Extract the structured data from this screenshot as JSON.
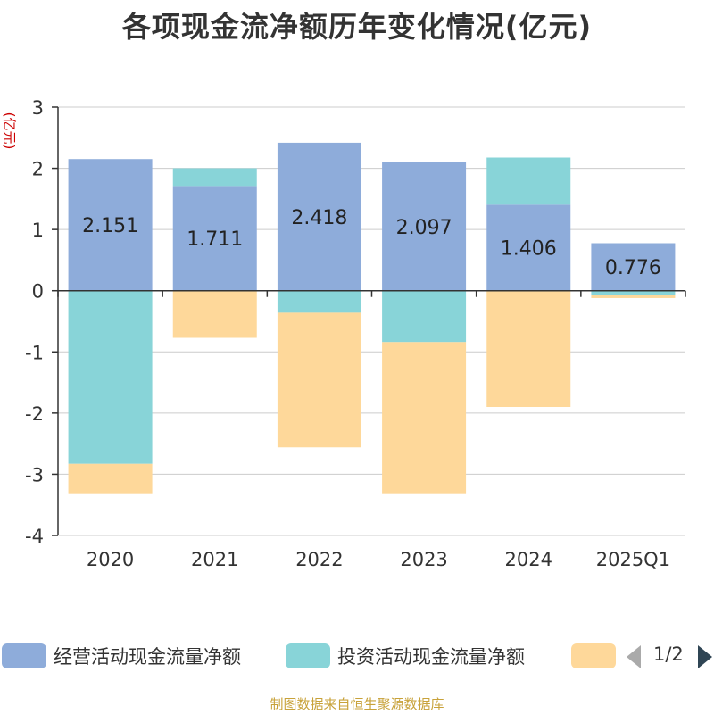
{
  "chart_data": {
    "type": "bar",
    "stacked": true,
    "title": "各项现金流净额历年变化情况(亿元)",
    "ylabel": "(亿元)",
    "ylim": [
      -4,
      3
    ],
    "yticks": [
      3,
      2,
      1,
      0,
      -1,
      -2,
      -3,
      -4
    ],
    "grid": true,
    "categories": [
      "2020",
      "2021",
      "2022",
      "2023",
      "2024",
      "2025Q1"
    ],
    "series": [
      {
        "name": "经营活动现金流量净额",
        "color": "#8eacda",
        "values": [
          2.151,
          1.711,
          2.418,
          2.097,
          1.406,
          0.776
        ],
        "labels": [
          "2.151",
          "1.711",
          "2.418",
          "2.097",
          "1.406",
          "0.776"
        ]
      },
      {
        "name": "投资活动现金流量净额",
        "color": "#88d4d8",
        "values": [
          -2.83,
          0.29,
          -0.36,
          -0.84,
          0.77,
          -0.07
        ]
      },
      {
        "name": "",
        "color": "#fed89a",
        "values": [
          -0.48,
          -0.77,
          -2.2,
          -2.47,
          -1.9,
          -0.05
        ]
      }
    ],
    "legend": "bottom",
    "pager": "1/2"
  },
  "source": "制图数据来自恒生聚源数据库"
}
